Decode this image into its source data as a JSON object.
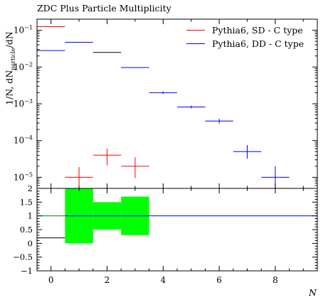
{
  "title": "ZDC Plus Particle Multiplicity",
  "ylabel_main": "1/N, dN",
  "ylabel_sub": "particle",
  "ylabel_tail": "/dN",
  "xlabel": "N",
  "chart_data": [
    {
      "type": "scatter",
      "panel": "main",
      "yscale": "log",
      "xlim": [
        -0.5,
        9.5
      ],
      "ylim": [
        5e-06,
        0.2
      ],
      "yticks": [
        {
          "value": 1e-05,
          "mantissa": "10",
          "exp": "−5"
        },
        {
          "value": 0.0001,
          "mantissa": "10",
          "exp": "−4"
        },
        {
          "value": 0.001,
          "mantissa": "10",
          "exp": "−3"
        },
        {
          "value": 0.01,
          "mantissa": "10",
          "exp": "−2"
        },
        {
          "value": 0.1,
          "mantissa": "10",
          "exp": "−1"
        }
      ],
      "legend_position": "top-right",
      "series": [
        {
          "name": "Pythia6, SD - C type",
          "color": "#ff0000",
          "points": [
            {
              "x": 0,
              "y": 0.125,
              "elow": 0,
              "ehigh": 0
            },
            {
              "x": 1,
              "y": 1e-05,
              "elow": 4.5e-06,
              "ehigh": 9e-06
            },
            {
              "x": 2,
              "y": 4e-05,
              "elow": 1.9e-05,
              "ehigh": 2e-05
            },
            {
              "x": 3,
              "y": 2e-05,
              "elow": 1.05e-05,
              "ehigh": 1.5e-05
            }
          ]
        },
        {
          "name": "Pythia6, DD - C type",
          "color": "#0000ff",
          "points": [
            {
              "x": 0,
              "y": 0.028,
              "elow": 0,
              "ehigh": 0
            },
            {
              "x": 1,
              "y": 0.047,
              "elow": 0,
              "ehigh": 0
            },
            {
              "x": 3,
              "y": 0.0097,
              "elow": 0,
              "ehigh": 0
            },
            {
              "x": 4,
              "y": 0.002,
              "elow": 0.00015,
              "ehigh": 0.00015
            },
            {
              "x": 5,
              "y": 0.00082,
              "elow": 7e-05,
              "ehigh": 7e-05
            },
            {
              "x": 6,
              "y": 0.00034,
              "elow": 5e-05,
              "ehigh": 5e-05
            },
            {
              "x": 7,
              "y": 5e-05,
              "elow": 1.8e-05,
              "ehigh": 2.5e-05
            },
            {
              "x": 8,
              "y": 1e-05,
              "elow": 5e-06,
              "ehigh": 1e-05
            }
          ]
        },
        {
          "color": "#000000",
          "points": [
            {
              "x": 2,
              "y": 0.025,
              "elow": 0,
              "ehigh": 0
            }
          ]
        }
      ]
    },
    {
      "type": "bar",
      "panel": "ratio",
      "xlim": [
        -0.5,
        9.5
      ],
      "ylim": [
        -1,
        2
      ],
      "yticks": [
        {
          "value": -1,
          "label": "−1"
        },
        {
          "value": -0.5,
          "label": "−0.5"
        },
        {
          "value": 0,
          "label": "0"
        },
        {
          "value": 0.5,
          "label": "0.5"
        },
        {
          "value": 1,
          "label": "1"
        },
        {
          "value": 1.5,
          "label": "1.5"
        },
        {
          "value": 2,
          "label": "2"
        }
      ],
      "xticks": [
        {
          "value": 0,
          "label": "0"
        },
        {
          "value": 2,
          "label": "2"
        },
        {
          "value": 4,
          "label": "4"
        },
        {
          "value": 6,
          "label": "6"
        },
        {
          "value": 8,
          "label": "8"
        }
      ],
      "band_color": "#00ff00",
      "band": [
        {
          "x": 1,
          "low": 0,
          "high": 2
        },
        {
          "x": 2,
          "low": 0.5,
          "high": 1.5
        },
        {
          "x": 3,
          "low": 0.3,
          "high": 1.7
        }
      ],
      "reference_lines": [
        {
          "color": "#0000ff",
          "y": 1,
          "x_from": 0.5,
          "x_to": 9.5
        },
        {
          "color": "#008000",
          "y": 1,
          "x_from": -0.5,
          "x_to": 0.5
        },
        {
          "color": "#000000",
          "y": 0.2,
          "x_from": -0.5,
          "x_to": 0.5
        }
      ]
    }
  ]
}
